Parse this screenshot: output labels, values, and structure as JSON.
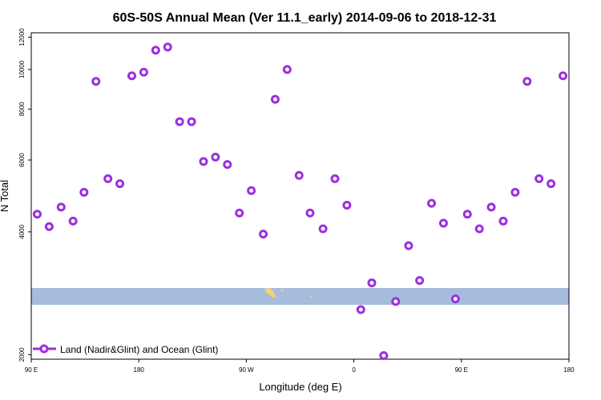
{
  "chart_data": {
    "type": "scatter",
    "title": "60S-50S Annual Mean (Ver 11.1_early)   2014-09-06 to 2018-12-31",
    "xlabel": "Longitude (deg E)",
    "ylabel": "N Total",
    "y_scale": "log",
    "xlim": [
      -90,
      180
    ],
    "ylim": [
      1950,
      12300
    ],
    "x_ticks": [
      {
        "value": -90,
        "label": "90 E"
      },
      {
        "value": -36,
        "label": "180"
      },
      {
        "value": 18,
        "label": "90 W"
      },
      {
        "value": 72,
        "label": "0"
      },
      {
        "value": 126,
        "label": "90 E"
      },
      {
        "value": 180,
        "label": "180"
      }
    ],
    "y_ticks": [
      {
        "value": 2000,
        "label": "2000"
      },
      {
        "value": 4000,
        "label": "4000"
      },
      {
        "value": 6000,
        "label": "6000"
      },
      {
        "value": 8000,
        "label": "8000"
      },
      {
        "value": 10000,
        "label": "10000"
      },
      {
        "value": 12000,
        "label": "12000"
      }
    ],
    "grid": false,
    "legend_position": "bottom-left",
    "band_color": "#a6bcdc",
    "series": [
      {
        "name": "Land (Nadir&Glint) and Ocean (Glint)",
        "color": "#9a2fe0",
        "points": [
          {
            "x": -87.0,
            "y": 4420
          },
          {
            "x": -81.0,
            "y": 4120
          },
          {
            "x": -75.0,
            "y": 4600
          },
          {
            "x": -69.0,
            "y": 4250
          },
          {
            "x": -63.5,
            "y": 5000
          },
          {
            "x": -57.5,
            "y": 9350
          },
          {
            "x": -51.5,
            "y": 5400
          },
          {
            "x": -45.5,
            "y": 5250
          },
          {
            "x": -39.5,
            "y": 9650
          },
          {
            "x": -33.5,
            "y": 9850
          },
          {
            "x": -27.5,
            "y": 11150
          },
          {
            "x": -21.5,
            "y": 11350
          },
          {
            "x": -15.5,
            "y": 7450
          },
          {
            "x": -9.5,
            "y": 7450
          },
          {
            "x": -3.5,
            "y": 5950
          },
          {
            "x": 2.5,
            "y": 6100
          },
          {
            "x": 8.5,
            "y": 5850
          },
          {
            "x": 14.5,
            "y": 4450
          },
          {
            "x": 20.5,
            "y": 5050
          },
          {
            "x": 26.5,
            "y": 3950
          },
          {
            "x": 32.5,
            "y": 8450
          },
          {
            "x": 38.5,
            "y": 10000
          },
          {
            "x": 44.5,
            "y": 5500
          },
          {
            "x": 50.0,
            "y": 4450
          },
          {
            "x": 56.5,
            "y": 4070
          },
          {
            "x": 62.5,
            "y": 5400
          },
          {
            "x": 68.5,
            "y": 4650
          },
          {
            "x": 75.5,
            "y": 2580
          },
          {
            "x": 81.0,
            "y": 3000
          },
          {
            "x": 87.0,
            "y": 1990
          },
          {
            "x": 93.0,
            "y": 2700
          },
          {
            "x": 99.5,
            "y": 3700
          },
          {
            "x": 105.0,
            "y": 3040
          },
          {
            "x": 111.0,
            "y": 4700
          },
          {
            "x": 117.0,
            "y": 4200
          },
          {
            "x": 123.0,
            "y": 2740
          },
          {
            "x": 129.0,
            "y": 4420
          },
          {
            "x": 135.0,
            "y": 4070
          },
          {
            "x": 141.0,
            "y": 4600
          },
          {
            "x": 147.0,
            "y": 4250
          },
          {
            "x": 153.0,
            "y": 5000
          },
          {
            "x": 159.0,
            "y": 9350
          },
          {
            "x": 165.0,
            "y": 5400
          },
          {
            "x": 171.0,
            "y": 5250
          },
          {
            "x": 177.0,
            "y": 9650
          }
        ]
      }
    ]
  }
}
